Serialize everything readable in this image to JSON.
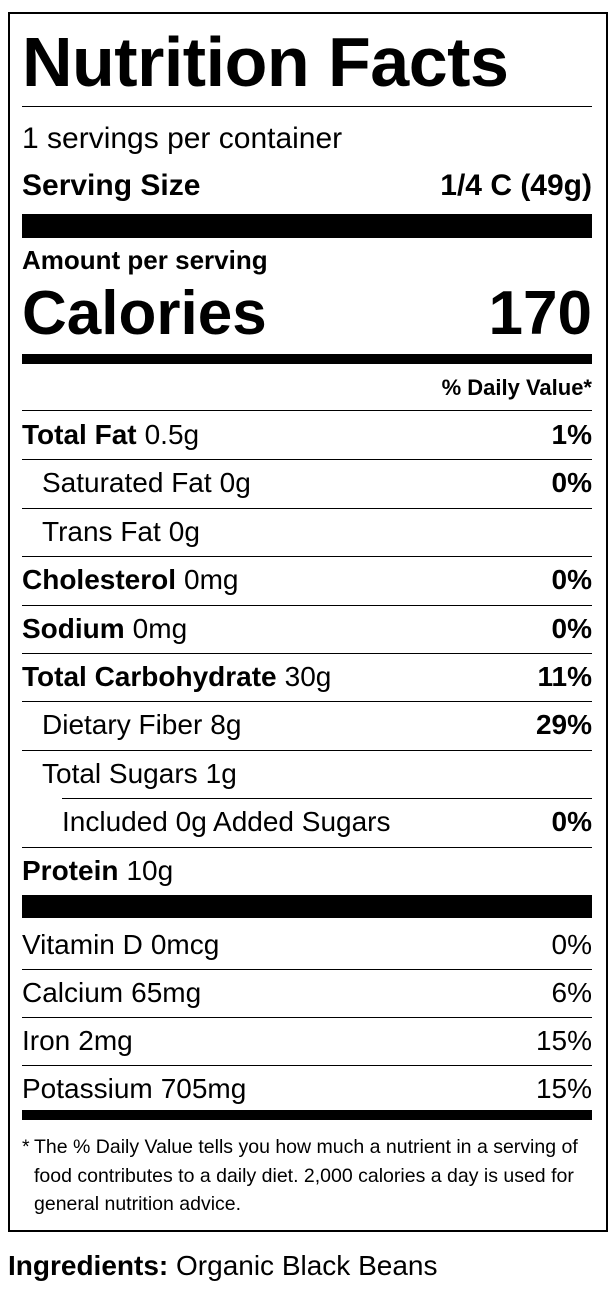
{
  "title": "Nutrition Facts",
  "servings": "1 servings per container",
  "serving_size": {
    "label": "Serving Size",
    "value": "1/4 C (49g)"
  },
  "amount_per_serving": "Amount per serving",
  "calories": {
    "label": "Calories",
    "value": 170
  },
  "dv_header": "% Daily Value*",
  "nutrients": [
    {
      "name": "Total Fat",
      "amount": "0.5g",
      "dv": "1%",
      "sub": [
        {
          "name": "Saturated Fat",
          "amount": "0g",
          "dv": "0%"
        },
        {
          "name": "Trans Fat",
          "amount": "0g"
        }
      ]
    },
    {
      "name": "Cholesterol",
      "amount": "0mg",
      "dv": "0%"
    },
    {
      "name": "Sodium",
      "amount": "0mg",
      "dv": "0%"
    },
    {
      "name": "Total Carbohydrate",
      "amount": "30g",
      "dv": "11%",
      "sub": [
        {
          "name": "Dietary Fiber",
          "amount": "8g",
          "dv": "29%"
        },
        {
          "name": "Total Sugars",
          "amount": "1g",
          "sub": [
            {
              "name": "Included 0g Added Sugars",
              "dv": "0%"
            }
          ]
        }
      ]
    },
    {
      "name": "Protein",
      "amount": "10g"
    }
  ],
  "vitamins": [
    {
      "name": "Vitamin D",
      "amount": "0mcg",
      "dv": "0%"
    },
    {
      "name": "Calcium",
      "amount": "65mg",
      "dv": "6%"
    },
    {
      "name": "Iron",
      "amount": "2mg",
      "dv": "15%"
    },
    {
      "name": "Potassium",
      "amount": "705mg",
      "dv": "15%"
    }
  ],
  "footnote": {
    "mark": "*",
    "text": "The % Daily Value tells you how much a nutrient in a serving of food contributes to a daily diet. 2,000 calories a day is used for general nutrition advice."
  },
  "ingredients": {
    "label": "Ingredients:",
    "text": "Organic Black Beans"
  }
}
